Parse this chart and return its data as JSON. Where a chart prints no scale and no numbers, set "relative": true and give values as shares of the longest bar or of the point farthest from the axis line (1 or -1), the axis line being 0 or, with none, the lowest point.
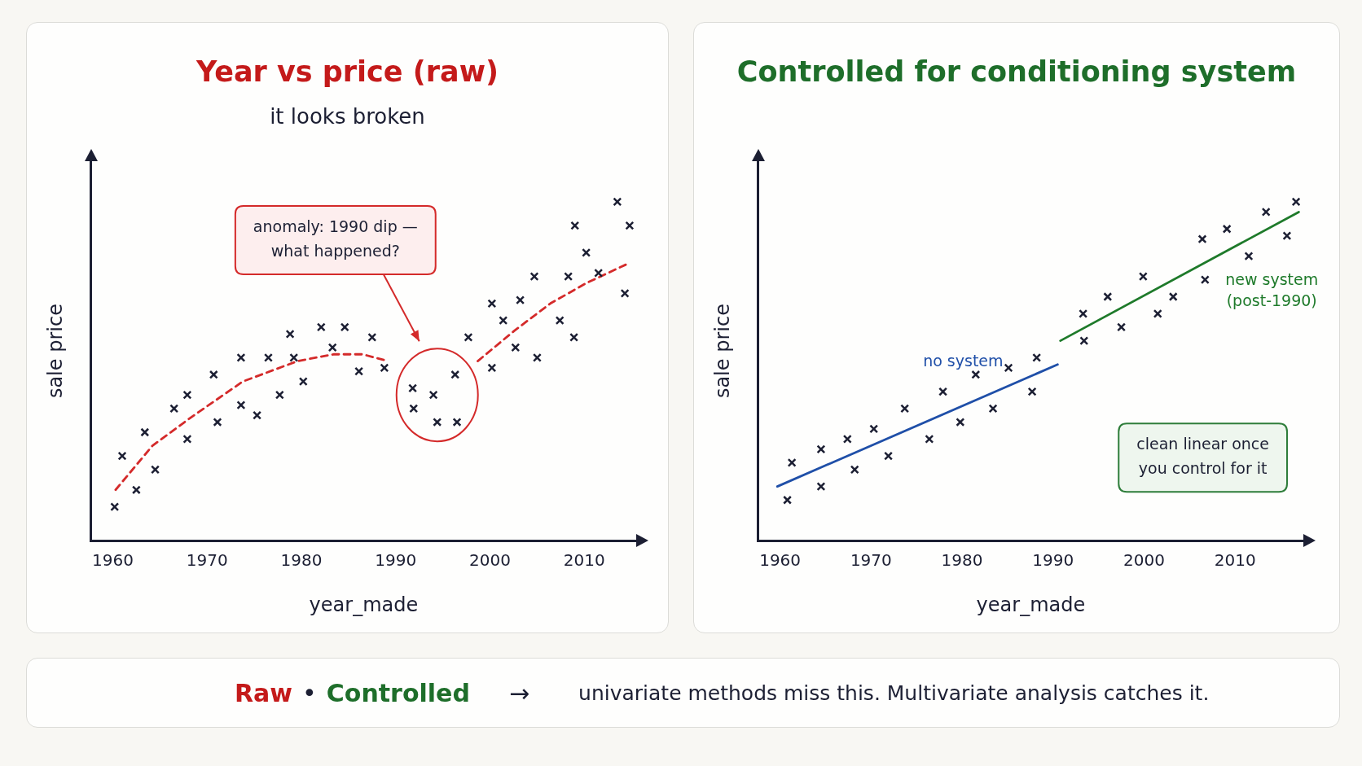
{
  "chart_data": [
    {
      "type": "scatter",
      "title": "Year vs price (raw)",
      "subtitle": "it looks broken",
      "xlabel": "year_made",
      "ylabel": "sale price",
      "relative": true,
      "xlim": [
        1957.7,
        2015.5
      ],
      "xticks": [
        1960,
        1970,
        1980,
        1990,
        2000,
        2010
      ],
      "tick_labels": "x",
      "annotations": [
        "anomaly: 1990 dip — what happened?"
      ],
      "series": [
        {
          "type": "scatter",
          "marker": "cross",
          "color": "#1c1f33",
          "x": [
            1960.2,
            1961.0,
            1962.5,
            1963.4,
            1964.5,
            1966.5,
            1967.9,
            1967.9,
            1970.7,
            1971.1,
            1973.6,
            1973.6,
            1975.3,
            1976.5,
            1977.7,
            1978.8,
            1979.2,
            1980.2,
            1982.1,
            1983.3,
            1984.6,
            1986.1,
            1987.5,
            1988.8,
            1991.8,
            1991.9,
            1994.0,
            1994.4,
            1996.3,
            1996.5,
            1997.7,
            2000.2,
            2000.2,
            2001.4,
            2002.7,
            2003.2,
            2004.7,
            2005.0,
            2007.4,
            2008.3,
            2008.9,
            2009.0,
            2010.2,
            2011.5,
            2013.5,
            2014.3,
            2014.8
          ],
          "values": [
            0.1,
            0.25,
            0.15,
            0.32,
            0.21,
            0.39,
            0.43,
            0.3,
            0.49,
            0.35,
            0.54,
            0.4,
            0.37,
            0.54,
            0.43,
            0.61,
            0.54,
            0.47,
            0.63,
            0.57,
            0.63,
            0.5,
            0.6,
            0.51,
            0.45,
            0.39,
            0.43,
            0.35,
            0.49,
            0.35,
            0.6,
            0.7,
            0.51,
            0.65,
            0.57,
            0.71,
            0.78,
            0.54,
            0.65,
            0.78,
            0.6,
            0.93,
            0.85,
            0.79,
            1.0,
            0.73,
            0.93
          ]
        },
        {
          "type": "line",
          "marker": "none",
          "color": "#d42a2a",
          "line_style": "dashed",
          "x": [
            1960.3,
            1964.2,
            1968.1,
            1973.8,
            1979.6,
            1983.4,
            1986.5,
            1989.2
          ],
          "values": [
            0.15,
            0.28,
            0.36,
            0.47,
            0.53,
            0.55,
            0.55,
            0.53
          ]
        },
        {
          "type": "line",
          "marker": "none",
          "color": "#d42a2a",
          "line_style": "dashed",
          "x": [
            1998.7,
            2002.6,
            2006.4,
            2010.2,
            2014.8
          ],
          "values": [
            0.53,
            0.62,
            0.7,
            0.76,
            0.82
          ]
        }
      ]
    },
    {
      "type": "scatter",
      "title": "Controlled for conditioning system",
      "xlabel": "year_made",
      "ylabel": "sale price",
      "relative": true,
      "xlim": [
        1957.6,
        2017.5
      ],
      "xticks": [
        1960,
        1970,
        1980,
        1990,
        2000,
        2010
      ],
      "tick_labels": "x",
      "annotations": [
        "clean linear once you control for it"
      ],
      "series": [
        {
          "type": "scatter",
          "marker": "cross",
          "color": "#1c1f33",
          "x": [
            1960.8,
            1961.3,
            1964.5,
            1964.5,
            1967.4,
            1968.2,
            1970.3,
            1971.9,
            1973.7,
            1976.4,
            1977.9,
            1979.8,
            1981.5,
            1983.4,
            1985.1,
            1987.7,
            1988.2,
            1993.3,
            1993.4,
            1996.0,
            1997.5,
            1999.9,
            2001.5,
            2003.2,
            2006.4,
            2006.7,
            2009.1,
            2011.5,
            2013.4,
            2015.7,
            2016.7
          ],
          "values": [
            0.12,
            0.23,
            0.27,
            0.16,
            0.3,
            0.21,
            0.33,
            0.25,
            0.39,
            0.3,
            0.44,
            0.35,
            0.49,
            0.39,
            0.51,
            0.44,
            0.54,
            0.67,
            0.59,
            0.72,
            0.63,
            0.78,
            0.67,
            0.72,
            0.89,
            0.77,
            0.92,
            0.84,
            0.97,
            0.9,
            1.0
          ]
        },
        {
          "type": "line",
          "marker": "none",
          "name": "no system",
          "color": "#1f4fa8",
          "line_style": "solid",
          "x": [
            1959.7,
            1990.5
          ],
          "values": [
            0.16,
            0.52
          ]
        },
        {
          "type": "line",
          "marker": "none",
          "name": "new system (post-1990)",
          "color": "#1e7a2a",
          "line_style": "solid",
          "x": [
            1990.8,
            2017.0
          ],
          "values": [
            0.59,
            0.97
          ]
        }
      ]
    },
    {
      "type": "other",
      "annotations": [
        "Raw",
        "•",
        "Controlled",
        "→",
        "univariate methods miss this. Multivariate analysis catches it."
      ]
    }
  ]
}
